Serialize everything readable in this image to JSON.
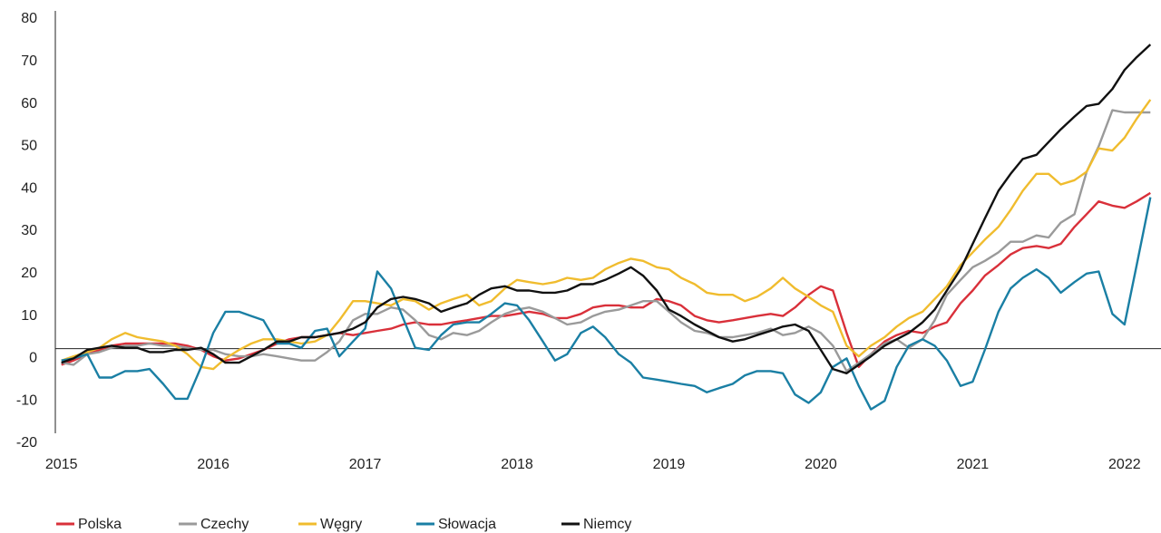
{
  "chart_data": {
    "type": "line",
    "x": [
      2015,
      2015.08,
      2015.17,
      2015.25,
      2015.33,
      2015.42,
      2015.5,
      2015.58,
      2015.67,
      2015.75,
      2015.83,
      2015.92,
      2016,
      2016.08,
      2016.17,
      2016.25,
      2016.33,
      2016.42,
      2016.5,
      2016.58,
      2016.67,
      2016.75,
      2016.83,
      2016.92,
      2017,
      2017.08,
      2017.17,
      2017.25,
      2017.33,
      2017.42,
      2017.5,
      2017.58,
      2017.67,
      2017.75,
      2017.83,
      2017.92,
      2018,
      2018.08,
      2018.17,
      2018.25,
      2018.33,
      2018.42,
      2018.5,
      2018.58,
      2018.67,
      2018.75,
      2018.83,
      2018.92,
      2019,
      2019.08,
      2019.17,
      2019.25,
      2019.33,
      2019.42,
      2019.5,
      2019.58,
      2019.67,
      2019.75,
      2019.83,
      2019.92,
      2020,
      2020.08,
      2020.17,
      2020.25,
      2020.33,
      2020.42,
      2020.5,
      2020.58,
      2020.67,
      2020.75,
      2020.83,
      2020.92,
      2021,
      2021.08,
      2021.17,
      2021.25,
      2021.33,
      2021.42,
      2021.5,
      2021.58,
      2021.67,
      2021.75,
      2021.83,
      2021.92,
      2022,
      2022.08,
      2022.17
    ],
    "series": [
      {
        "name": "Polska",
        "color": "#d9303a",
        "values": [
          -1.5,
          -0.5,
          1,
          2,
          3,
          3.5,
          3.5,
          3.5,
          3.5,
          3.5,
          3,
          2,
          0.5,
          -0.5,
          0,
          1,
          2,
          3.5,
          4.5,
          5,
          5,
          5.5,
          6,
          5.5,
          6,
          6.5,
          7,
          8,
          8.5,
          8,
          8,
          8.5,
          9,
          9.5,
          10,
          10,
          10.5,
          11,
          10.5,
          9.5,
          9.5,
          10.5,
          12,
          12.5,
          12.5,
          12,
          12,
          14,
          13.5,
          12.5,
          10,
          9,
          8.5,
          9,
          9.5,
          10,
          10.5,
          10,
          12,
          15,
          17,
          16,
          6,
          -2,
          1,
          4,
          5.5,
          6.5,
          6,
          7.5,
          8.5,
          13,
          16,
          19.5,
          22,
          24.5,
          26,
          26.5,
          26,
          27,
          31,
          34,
          37,
          36,
          35.5,
          37,
          39
        ]
      },
      {
        "name": "Czechy",
        "color": "#9a9a9a",
        "values": [
          -1,
          -1.5,
          1,
          1.5,
          2.5,
          3,
          3,
          3.5,
          3,
          3,
          2.5,
          2,
          2,
          1,
          0.5,
          0.5,
          1,
          0.5,
          0,
          -0.5,
          -0.5,
          1.5,
          4,
          9,
          10.5,
          10.5,
          12,
          11.5,
          9,
          5.5,
          4.5,
          6,
          5.5,
          6.5,
          8.5,
          10.5,
          11.5,
          12,
          11,
          9.5,
          8,
          8.5,
          10,
          11,
          11.5,
          12.5,
          13.5,
          13.5,
          11,
          8.5,
          6.5,
          6,
          5,
          5,
          5.5,
          6,
          7,
          5.5,
          6,
          7.5,
          6,
          3,
          -3,
          -1,
          1,
          3.5,
          4.5,
          2.5,
          4.5,
          9,
          15,
          18.5,
          21.5,
          23,
          25,
          27.5,
          27.5,
          29,
          28.5,
          32,
          34,
          44,
          50,
          58.5,
          58,
          58,
          58
        ]
      },
      {
        "name": "Węgry",
        "color": "#f0bc2e",
        "values": [
          -0.5,
          0.5,
          1.5,
          2.5,
          4.5,
          6,
          5,
          4.5,
          4,
          3,
          1,
          -2,
          -2.5,
          0,
          2,
          3.5,
          4.5,
          4.5,
          4,
          3.5,
          4,
          5.5,
          9,
          13.5,
          13.5,
          13,
          12.5,
          14,
          13.5,
          11.5,
          13,
          14,
          15,
          12.5,
          13.5,
          16.5,
          18.5,
          18,
          17.5,
          18,
          19,
          18.5,
          19,
          21,
          22.5,
          23.5,
          23,
          21.5,
          21,
          19,
          17.5,
          15.5,
          15,
          15,
          13.5,
          14.5,
          16.5,
          19,
          16.5,
          14.5,
          12.5,
          11,
          3,
          0.5,
          3,
          5,
          7.5,
          9.5,
          11,
          14,
          17,
          22,
          25,
          28,
          31,
          35,
          39.5,
          43.5,
          43.5,
          41,
          42,
          44,
          49.5,
          49,
          52,
          56.5,
          61
        ]
      },
      {
        "name": "Słowacja",
        "color": "#1a7fa4",
        "values": [
          -0.5,
          0,
          1,
          -4.5,
          -4.5,
          -3,
          -3,
          -2.5,
          -6,
          -9.5,
          -9.5,
          -2,
          6,
          11,
          11,
          10,
          9,
          3.5,
          3.5,
          2.5,
          6.5,
          7,
          0.5,
          4,
          7,
          20.5,
          16.5,
          9.5,
          2.5,
          2,
          5.5,
          8,
          8.5,
          8.5,
          10.5,
          13,
          12.5,
          9,
          4,
          -0.5,
          1,
          6,
          7.5,
          5,
          1,
          -1,
          -4.5,
          -5,
          -5.5,
          -6,
          -6.5,
          -8,
          -7,
          -6,
          -4,
          -3,
          -3,
          -3.5,
          -8.5,
          -10.5,
          -8,
          -2,
          0,
          -6.5,
          -12,
          -10,
          -2,
          3,
          4.5,
          3,
          -0.5,
          -6.5,
          -5.5,
          2,
          11,
          16.5,
          19,
          21,
          19,
          15.5,
          18,
          20,
          20.5,
          10.5,
          8,
          22,
          38
        ]
      },
      {
        "name": "Niemcy",
        "color": "#111111",
        "values": [
          -1,
          0,
          2,
          2.5,
          3,
          2.5,
          2.5,
          1.5,
          1.5,
          2,
          2,
          2.5,
          1,
          -1,
          -1,
          0.5,
          2,
          4,
          4,
          5,
          5,
          5.5,
          6,
          7,
          8.5,
          12,
          14,
          14.5,
          14,
          13,
          11,
          12,
          13,
          15,
          16.5,
          17,
          16,
          16,
          15.5,
          15.5,
          16,
          17.5,
          17.5,
          18.5,
          20,
          21.5,
          19.5,
          16,
          11.5,
          10,
          8,
          6.5,
          5,
          4,
          4.5,
          5.5,
          6.5,
          7.5,
          8,
          6.5,
          2,
          -2.5,
          -3.5,
          -1.5,
          0.5,
          3,
          4.5,
          6,
          8.5,
          11.5,
          16,
          21,
          27,
          33,
          39.5,
          43.5,
          47,
          48,
          51,
          54,
          57,
          59.5,
          60,
          63.5,
          68,
          71,
          74
        ]
      }
    ],
    "xlim": [
      2014.96,
      2022.24
    ],
    "xticks": [
      2015,
      2016,
      2017,
      2018,
      2019,
      2020,
      2021,
      2022
    ],
    "ylim": [
      -20,
      80
    ],
    "yticks": [
      -20,
      -10,
      0,
      10,
      20,
      30,
      40,
      50,
      60,
      70,
      80
    ],
    "axhline": 2.3,
    "grid": false,
    "legend": "bottom-left"
  }
}
